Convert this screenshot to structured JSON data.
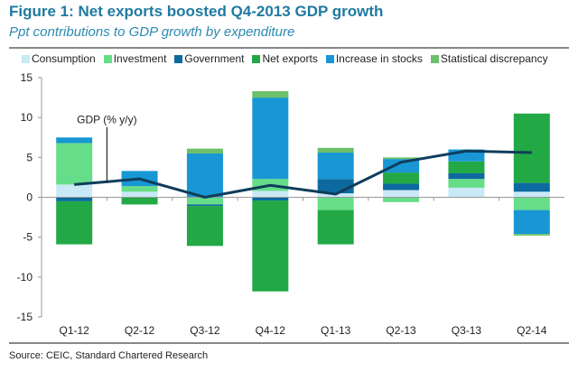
{
  "title": "Figure 1: Net exports boosted Q4-2013 GDP growth",
  "subtitle": "Ppt contributions to GDP growth by expenditure",
  "source": "Source: CEIC, Standard Chartered Research",
  "chart_data": {
    "type": "bar",
    "stacked": true,
    "title": "Figure 1: Net exports boosted Q4-2013 GDP growth",
    "subtitle": "Ppt contributions to GDP growth by expenditure",
    "xlabel": "",
    "ylabel": "",
    "ylim": [
      -15,
      15
    ],
    "yticks": [
      15,
      10,
      5,
      0,
      -5,
      -10,
      -15
    ],
    "legend_position": "top",
    "categories": [
      "Q1-12",
      "Q2-12",
      "Q3-12",
      "Q4-12",
      "Q1-13",
      "Q2-13",
      "Q3-13",
      "Q2-14"
    ],
    "series": [
      {
        "name": "Consumption",
        "color": "#c9e9f6",
        "values": [
          1.6,
          0.7,
          0.0,
          0.8,
          0.5,
          0.9,
          1.2,
          0.7
        ]
      },
      {
        "name": "Investment",
        "color": "#66dd88",
        "values": [
          5.2,
          0.7,
          -0.9,
          1.5,
          -1.6,
          -0.6,
          1.1,
          -1.6
        ]
      },
      {
        "name": "Government",
        "color": "#0d6aa0",
        "values": [
          -0.5,
          0.0,
          -0.2,
          -0.4,
          1.8,
          0.8,
          0.7,
          1.1
        ]
      },
      {
        "name": "Net exports",
        "color": "#22a845",
        "values": [
          -5.4,
          -0.9,
          -5.0,
          -11.4,
          -4.3,
          1.4,
          1.5,
          8.7
        ]
      },
      {
        "name": "Increase in stocks",
        "color": "#1897d4",
        "values": [
          0.7,
          1.9,
          5.5,
          10.2,
          3.3,
          1.7,
          1.5,
          -3.0
        ]
      },
      {
        "name": "Statistical discrepancy",
        "color": "#6cc06a",
        "values": [
          0.0,
          0.0,
          0.6,
          0.8,
          0.6,
          0.2,
          0.0,
          -0.2
        ]
      }
    ],
    "line": {
      "name": "GDP (% y/y)",
      "color": "#0f3d5c",
      "values": [
        1.6,
        2.3,
        0.0,
        1.5,
        0.4,
        4.4,
        5.8,
        5.6
      ]
    },
    "annotation": "GDP (% y/y)"
  }
}
